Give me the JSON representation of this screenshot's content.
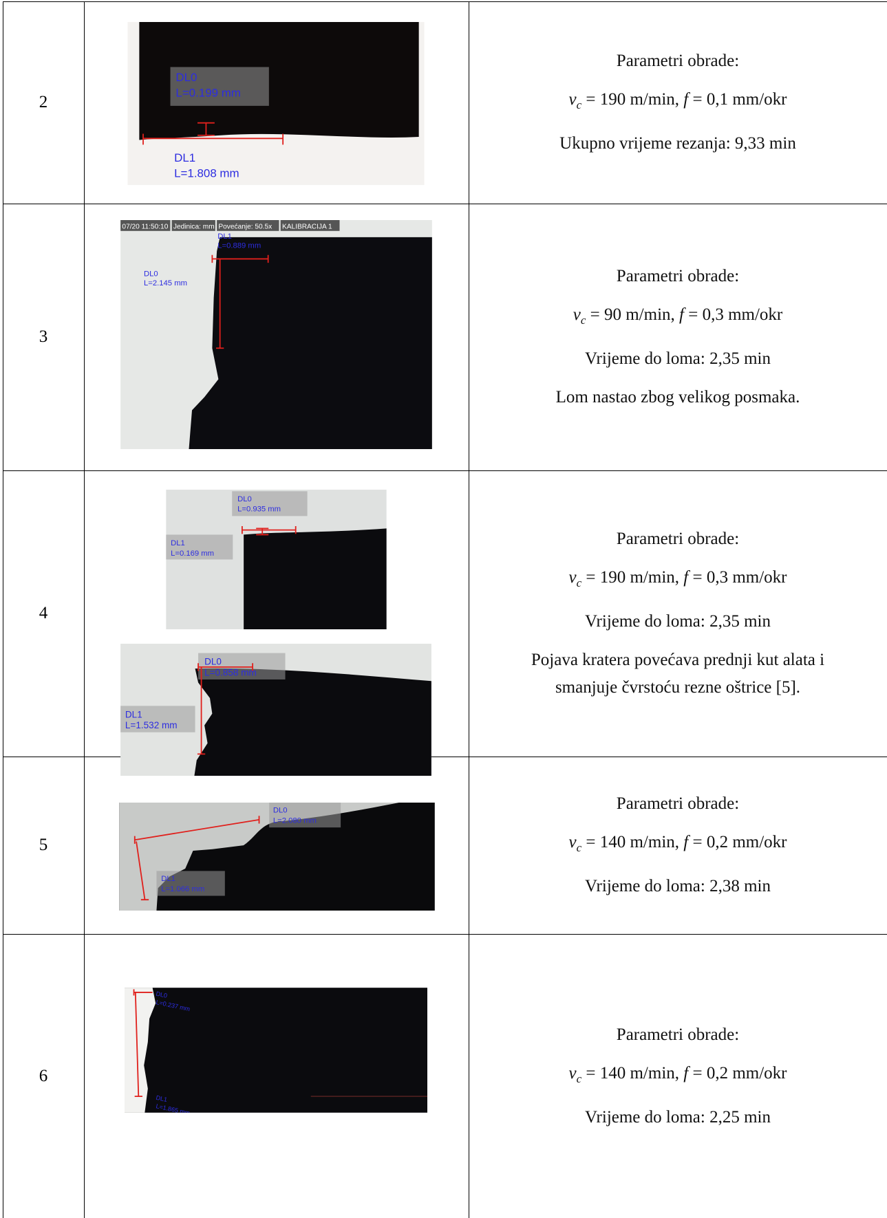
{
  "rows": [
    {
      "number": "2",
      "title": "Parametri obrade:",
      "params": [
        "v",
        "c",
        " = 190 m/min, ",
        "f",
        " = 0,1 mm/okr"
      ],
      "time": "Ukupno vrijeme rezanja: 9,33 min",
      "notes": [],
      "images": [
        {
          "labels": [
            {
              "name": "DL0",
              "value": "L=0.199 mm"
            },
            {
              "name": "DL1",
              "value": "L=1.808 mm"
            }
          ]
        }
      ]
    },
    {
      "number": "3",
      "title": "Parametri obrade:",
      "params": [
        "v",
        "c",
        " = 90 m/min, ",
        "f",
        " = 0,3 mm/okr"
      ],
      "time": "Vrijeme do loma: 2,35 min",
      "notes": [
        "Lom nastao zbog velikog posmaka."
      ],
      "images": [
        {
          "overlay": [
            "07/20 11:50:10",
            "Jedinica: mm",
            "Povećanje: 50.5x",
            "KALIBRACIJA 1"
          ],
          "labels": [
            {
              "name": "DL1",
              "value": "L=0.889 mm"
            },
            {
              "name": "DL0",
              "value": "L=2.145 mm"
            }
          ]
        }
      ]
    },
    {
      "number": "4",
      "title": "Parametri obrade:",
      "params": [
        "v",
        "c",
        " = 190 m/min, ",
        "f",
        " = 0,3 mm/okr"
      ],
      "time": "Vrijeme do loma: 2,35 min",
      "notes": [
        "Pojava kratera povećava prednji kut alata i",
        "smanjuje čvrstoću rezne oštrice [5]."
      ],
      "images": [
        {
          "labels": [
            {
              "name": "DL0",
              "value": "L=0.935 mm"
            },
            {
              "name": "DL1",
              "value": "L=0.169 mm"
            }
          ]
        },
        {
          "labels": [
            {
              "name": "DL0",
              "value": "L=0.858 mm"
            },
            {
              "name": "DL1",
              "value": "L=1.532 mm"
            }
          ]
        }
      ]
    },
    {
      "number": "5",
      "title": "Parametri obrade:",
      "params": [
        "v",
        "c",
        " = 140 m/min, ",
        "f",
        " = 0,2 mm/okr"
      ],
      "time": "Vrijeme do loma: 2,38 min",
      "notes": [],
      "images": [
        {
          "labels": [
            {
              "name": "DL0",
              "value": "L=2.080 mm"
            },
            {
              "name": "DL1",
              "value": "L=1.066 mm"
            }
          ]
        }
      ]
    },
    {
      "number": "6",
      "title": "Parametri obrade:",
      "params": [
        "v",
        "c",
        " = 140 m/min, ",
        "f",
        " = 0,2 mm/okr"
      ],
      "time": "Vrijeme do loma: 2,25 min",
      "notes": [],
      "images": [
        {
          "labels": [
            {
              "name": "DL0",
              "value": "L=0.237 mm"
            },
            {
              "name": "DL1",
              "value": "L=1.865 mm"
            }
          ]
        }
      ]
    }
  ]
}
